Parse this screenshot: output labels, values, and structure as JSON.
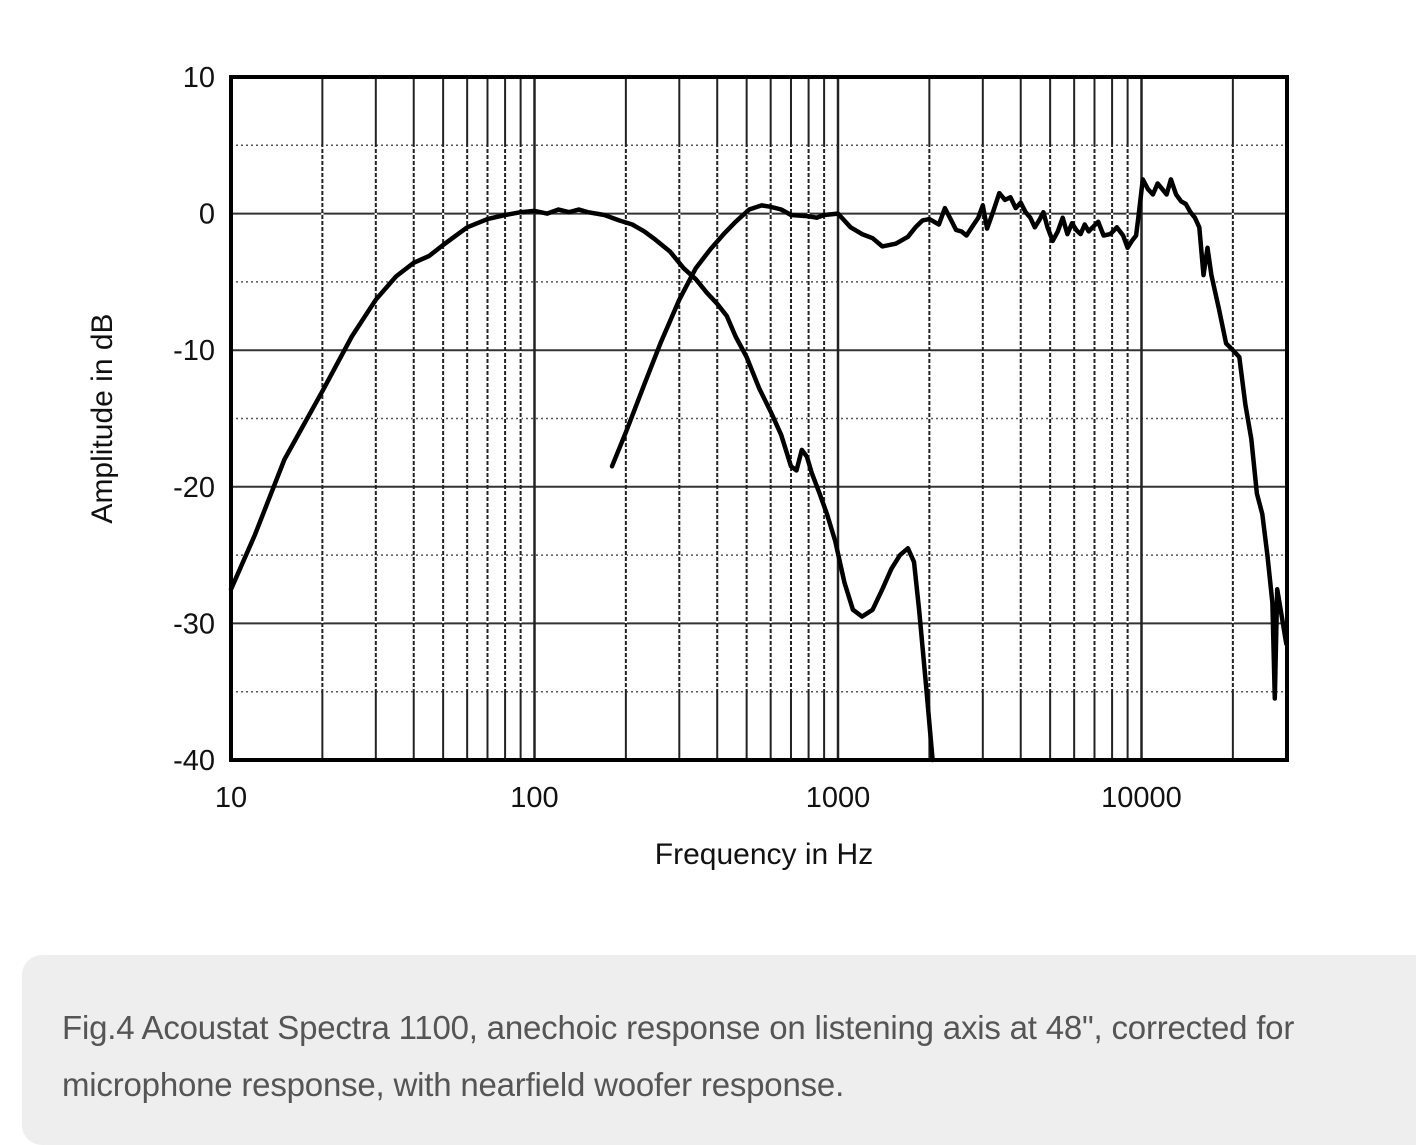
{
  "caption": "Fig.4 Acoustat Spectra 1100, anechoic response on listening axis at 48\", corrected for microphone response, with nearfield woofer response.",
  "chart_data": {
    "type": "line",
    "xlabel": "Frequency in Hz",
    "ylabel": "Amplitude in dB",
    "x_scale": "log",
    "xlim": [
      10,
      30000
    ],
    "ylim": [
      -40,
      10
    ],
    "x_ticks": [
      10,
      100,
      1000,
      10000
    ],
    "x_tick_labels": [
      "10",
      "100",
      "1000",
      "10000"
    ],
    "y_ticks": [
      10,
      0,
      -10,
      -20,
      -30,
      -40
    ],
    "y_tick_labels": [
      "10",
      "0",
      "-10",
      "-20",
      "-30",
      "-40"
    ],
    "grid": true,
    "line_color": "#000000",
    "series": [
      {
        "points": [
          [
            10,
            -27.5
          ],
          [
            12,
            -23.5
          ],
          [
            15,
            -18
          ],
          [
            20,
            -13
          ],
          [
            25,
            -9
          ],
          [
            30,
            -6.3
          ],
          [
            35,
            -4.6
          ],
          [
            40,
            -3.6
          ],
          [
            45,
            -3.1
          ],
          [
            50,
            -2.3
          ],
          [
            60,
            -1.0
          ],
          [
            70,
            -0.4
          ],
          [
            80,
            -0.1
          ],
          [
            90,
            0.1
          ],
          [
            100,
            0.2
          ],
          [
            110,
            0
          ],
          [
            120,
            0.3
          ],
          [
            130,
            0.1
          ],
          [
            140,
            0.3
          ],
          [
            150,
            0.1
          ],
          [
            170,
            -0.1
          ],
          [
            190,
            -0.5
          ],
          [
            210,
            -0.8
          ],
          [
            230,
            -1.3
          ],
          [
            250,
            -1.9
          ],
          [
            280,
            -2.8
          ],
          [
            310,
            -4.0
          ],
          [
            340,
            -4.8
          ],
          [
            370,
            -5.8
          ],
          [
            400,
            -6.6
          ],
          [
            430,
            -7.5
          ],
          [
            460,
            -9.0
          ],
          [
            500,
            -10.5
          ],
          [
            550,
            -12.8
          ],
          [
            600,
            -14.5
          ],
          [
            650,
            -16.2
          ],
          [
            700,
            -18.5
          ],
          [
            730,
            -18.8
          ],
          [
            760,
            -17.3
          ],
          [
            790,
            -17.8
          ],
          [
            820,
            -19.0
          ],
          [
            870,
            -20.5
          ],
          [
            920,
            -22.0
          ],
          [
            980,
            -24.0
          ],
          [
            1050,
            -27.0
          ],
          [
            1120,
            -29.0
          ],
          [
            1200,
            -29.5
          ],
          [
            1300,
            -29.0
          ],
          [
            1400,
            -27.5
          ],
          [
            1500,
            -26.0
          ],
          [
            1600,
            -25.0
          ],
          [
            1700,
            -24.5
          ],
          [
            1780,
            -25.5
          ],
          [
            1850,
            -29.0
          ],
          [
            1950,
            -34.5
          ],
          [
            2050,
            -40.0
          ]
        ]
      },
      {
        "points": [
          [
            180,
            -18.5
          ],
          [
            200,
            -16.0
          ],
          [
            230,
            -12.5
          ],
          [
            260,
            -9.5
          ],
          [
            300,
            -6.3
          ],
          [
            340,
            -4.0
          ],
          [
            380,
            -2.6
          ],
          [
            420,
            -1.5
          ],
          [
            460,
            -0.6
          ],
          [
            510,
            0.3
          ],
          [
            560,
            0.6
          ],
          [
            600,
            0.5
          ],
          [
            650,
            0.3
          ],
          [
            700,
            -0.1
          ],
          [
            800,
            -0.2
          ],
          [
            850,
            -0.3
          ],
          [
            900,
            -0.1
          ],
          [
            1000,
            0
          ],
          [
            1100,
            -1.0
          ],
          [
            1200,
            -1.5
          ],
          [
            1300,
            -1.8
          ],
          [
            1400,
            -2.4
          ],
          [
            1550,
            -2.2
          ],
          [
            1700,
            -1.7
          ],
          [
            1800,
            -1.0
          ],
          [
            1900,
            -0.5
          ],
          [
            2000,
            -0.4
          ],
          [
            2150,
            -0.8
          ],
          [
            2250,
            0.4
          ],
          [
            2350,
            -0.4
          ],
          [
            2450,
            -1.2
          ],
          [
            2550,
            -1.3
          ],
          [
            2650,
            -1.6
          ],
          [
            2800,
            -0.8
          ],
          [
            2900,
            -0.3
          ],
          [
            3000,
            0.6
          ],
          [
            3100,
            -1.1
          ],
          [
            3250,
            0.2
          ],
          [
            3400,
            1.5
          ],
          [
            3550,
            1.0
          ],
          [
            3700,
            1.2
          ],
          [
            3850,
            0.4
          ],
          [
            4000,
            0.8
          ],
          [
            4150,
            0.1
          ],
          [
            4300,
            -0.3
          ],
          [
            4450,
            -1.0
          ],
          [
            4600,
            -0.5
          ],
          [
            4750,
            0.1
          ],
          [
            4900,
            -1.0
          ],
          [
            5100,
            -2.0
          ],
          [
            5300,
            -1.3
          ],
          [
            5500,
            -0.3
          ],
          [
            5700,
            -1.5
          ],
          [
            5900,
            -0.7
          ],
          [
            6100,
            -1.2
          ],
          [
            6300,
            -1.5
          ],
          [
            6500,
            -0.8
          ],
          [
            6700,
            -1.3
          ],
          [
            6900,
            -1.0
          ],
          [
            7200,
            -0.6
          ],
          [
            7500,
            -1.6
          ],
          [
            7900,
            -1.5
          ],
          [
            8300,
            -1.0
          ],
          [
            8700,
            -1.6
          ],
          [
            9000,
            -2.5
          ],
          [
            9300,
            -2.0
          ],
          [
            9600,
            -1.6
          ],
          [
            9800,
            0.0
          ],
          [
            10100,
            2.5
          ],
          [
            10500,
            1.8
          ],
          [
            10900,
            1.4
          ],
          [
            11300,
            2.2
          ],
          [
            11700,
            1.8
          ],
          [
            12100,
            1.4
          ],
          [
            12500,
            2.5
          ],
          [
            13000,
            1.4
          ],
          [
            13500,
            0.9
          ],
          [
            14000,
            0.7
          ],
          [
            14500,
            0.1
          ],
          [
            15000,
            -0.3
          ],
          [
            15500,
            -1.0
          ],
          [
            16000,
            -4.5
          ],
          [
            16500,
            -2.5
          ],
          [
            17000,
            -4.5
          ],
          [
            18000,
            -7.0
          ],
          [
            19000,
            -9.5
          ],
          [
            20000,
            -10.0
          ],
          [
            21000,
            -10.5
          ],
          [
            22000,
            -14.0
          ],
          [
            23000,
            -16.5
          ],
          [
            24000,
            -20.5
          ],
          [
            25000,
            -22.0
          ],
          [
            26000,
            -25.0
          ],
          [
            27000,
            -28.5
          ],
          [
            27500,
            -35.5
          ],
          [
            28000,
            -27.5
          ],
          [
            29000,
            -29.5
          ],
          [
            30000,
            -31.5
          ]
        ]
      }
    ]
  }
}
